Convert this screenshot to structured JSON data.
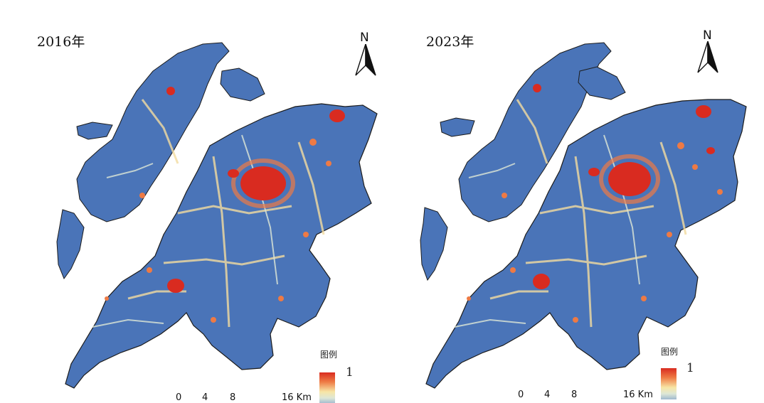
{
  "panels": [
    {
      "id": "2016",
      "year_label": "2016年",
      "north_label": "N",
      "legend": {
        "title": "图例",
        "max_label": "1"
      },
      "scale": {
        "ticks": [
          "0",
          "4",
          "8"
        ],
        "end_label": "16 Km"
      }
    },
    {
      "id": "2023",
      "year_label": "2023年",
      "north_label": "N",
      "legend": {
        "title": "图例",
        "max_label": "1"
      },
      "scale": {
        "ticks": [
          "0",
          "4",
          "8"
        ],
        "end_label": "16 Km"
      }
    }
  ],
  "colors": {
    "low": "#4a74b8",
    "mid_low": "#dde7d6",
    "mid": "#f7e6a6",
    "high": "#ee7a44",
    "max": "#d92b20"
  }
}
